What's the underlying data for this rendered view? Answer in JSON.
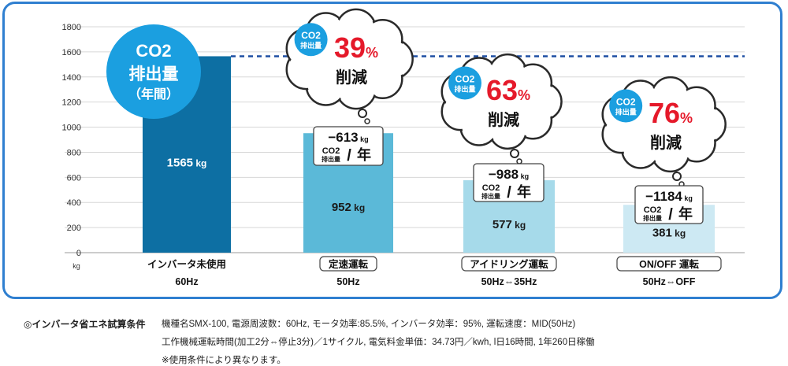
{
  "chart_data": {
    "type": "bar",
    "unit": "kg",
    "ylim": [
      0,
      1800
    ],
    "yticks": [
      0,
      200,
      400,
      600,
      800,
      1000,
      1200,
      1400,
      1600,
      1800
    ],
    "grid": true,
    "reference_line": 1565,
    "categories": [
      {
        "label": "インバータ未使用",
        "sub": "60Hz",
        "boxed": false
      },
      {
        "label": "定速運転",
        "sub": "50Hz",
        "boxed": true
      },
      {
        "label": "アイドリング運転",
        "sub": "50Hz⇔35Hz",
        "boxed": true
      },
      {
        "label": "ON/OFF 運転",
        "sub": "50Hz⇔OFF",
        "boxed": true
      }
    ],
    "values": [
      1565,
      952,
      577,
      381
    ],
    "value_labels": [
      "1565",
      "952",
      "577",
      "381"
    ],
    "bar_colors": [
      "#0d6fa3",
      "#5bb9d8",
      "#a6daea",
      "#cde9f3"
    ],
    "reduction_kg": [
      null,
      "−613",
      "−988",
      "−1184"
    ],
    "reduction_pct": [
      null,
      "39",
      "63",
      "76"
    ],
    "legend_badge": {
      "line1": "CO2",
      "line2": "排出量",
      "line3": "（年間）"
    },
    "small_badge": {
      "line1": "CO2",
      "line2": "排出量"
    },
    "cut_word": "削減",
    "per_year": "年",
    "percent_sign": "%",
    "colors": {
      "grid": "#d7d7d7",
      "dash": "#1e4fa3",
      "badge": "#1b9fe0",
      "red": "#e5192a",
      "frame": "#2f7fd0"
    }
  },
  "conditions": {
    "title": "◎インバータ省エネ試算条件",
    "line1": "機種名SMX-100, 電源周波数：60Hz, モータ効率:85.5%, インバータ効率：95%, 運転速度：MID(50Hz)",
    "line2": "工作機械運転時間(加工2分⇔停止3分)／1サイクル, 電気料金単価：34.73円／kwh, l日16時間, 1年260日稼働",
    "line3": "※使用条件により異なります。"
  }
}
